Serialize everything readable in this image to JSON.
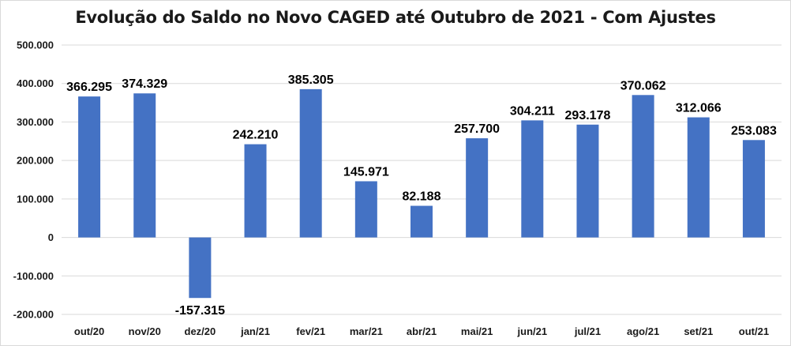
{
  "chart_data": {
    "type": "bar",
    "title": "Evolução do Saldo no Novo CAGED até Outubro de 2021 - Com Ajustes",
    "categories": [
      "out/20",
      "nov/20",
      "dez/20",
      "jan/21",
      "fev/21",
      "mar/21",
      "abr/21",
      "mai/21",
      "jun/21",
      "jul/21",
      "ago/21",
      "set/21",
      "out/21"
    ],
    "values": [
      366295,
      374329,
      -157315,
      242210,
      385305,
      145971,
      82188,
      257700,
      304211,
      293178,
      370062,
      312066,
      253083
    ],
    "data_labels": [
      "366.295",
      "374.329",
      "-157.315",
      "242.210",
      "385.305",
      "145.971",
      "82.188",
      "257.700",
      "304.211",
      "293.178",
      "370.062",
      "312.066",
      "253.083"
    ],
    "ylim": [
      -200000,
      500000
    ],
    "yticks": [
      500000,
      400000,
      300000,
      200000,
      100000,
      0,
      -100000,
      -200000
    ],
    "ytick_labels": [
      "500.000",
      "400.000",
      "300.000",
      "200.000",
      "100.000",
      "0",
      "-100.000",
      "-200.000"
    ],
    "grid": true,
    "bar_color": "#4472c4",
    "grid_color": "#d9d9d9"
  }
}
